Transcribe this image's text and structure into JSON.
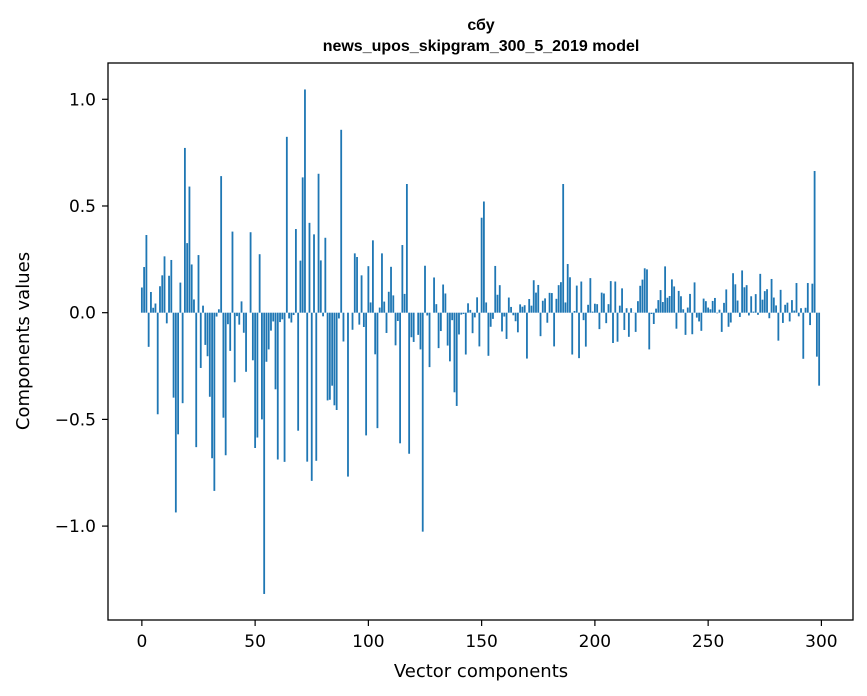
{
  "chart_data": {
    "type": "bar",
    "title_line1": "сбу",
    "title_line2": "news_upos_skipgram_300_5_2019 model",
    "xlabel": "Vector components",
    "ylabel": "Components values",
    "xlim": [
      -14.95,
      313.95
    ],
    "ylim": [
      -1.44,
      1.17
    ],
    "xticks": [
      0,
      50,
      100,
      150,
      200,
      250,
      300
    ],
    "xtick_labels": [
      "0",
      "50",
      "100",
      "150",
      "200",
      "250",
      "300"
    ],
    "yticks": [
      1.0,
      0.5,
      0.0,
      -0.5,
      -1.0
    ],
    "ytick_labels": [
      "1.0",
      "0.5",
      "0.0",
      "−0.5",
      "−1.0"
    ],
    "bar_color": "#1f77b4",
    "series": [
      {
        "name": "сбу",
        "values": [
          0.118,
          0.214,
          0.364,
          -0.16,
          0.097,
          0.023,
          0.043,
          -0.476,
          0.124,
          0.175,
          0.264,
          -0.05,
          0.173,
          0.247,
          -0.398,
          -0.936,
          -0.57,
          0.141,
          -0.424,
          0.772,
          0.326,
          0.591,
          0.226,
          0.062,
          -0.63,
          0.27,
          -0.259,
          0.033,
          -0.151,
          -0.204,
          -0.394,
          -0.682,
          -0.835,
          -0.018,
          0.016,
          0.64,
          -0.492,
          -0.668,
          -0.054,
          -0.179,
          0.38,
          -0.326,
          -0.016,
          -0.056,
          0.053,
          -0.094,
          -0.277,
          0.0,
          0.377,
          -0.223,
          -0.634,
          -0.585,
          0.274,
          -0.5,
          -1.318,
          -0.23,
          -0.172,
          -0.084,
          -0.041,
          -0.359,
          -0.688,
          -0.044,
          -0.031,
          -0.699,
          0.824,
          -0.027,
          -0.046,
          -0.011,
          0.392,
          -0.553,
          0.244,
          0.634,
          1.046,
          -0.698,
          0.421,
          -0.788,
          0.367,
          -0.694,
          0.651,
          0.245,
          -0.017,
          0.351,
          -0.411,
          -0.408,
          -0.342,
          -0.434,
          -0.456,
          -0.027,
          0.857,
          -0.135,
          0.0,
          -0.768,
          0.0,
          -0.08,
          0.278,
          0.261,
          -0.056,
          0.175,
          -0.067,
          -0.575,
          0.218,
          0.048,
          0.339,
          -0.195,
          -0.541,
          0.024,
          0.278,
          0.052,
          -0.095,
          0.098,
          0.215,
          0.081,
          -0.153,
          -0.039,
          -0.612,
          0.317,
          0.088,
          0.603,
          -0.661,
          -0.115,
          -0.137,
          0.0,
          -0.104,
          -0.172,
          -1.026,
          0.22,
          -0.013,
          -0.255,
          0.0,
          0.165,
          0.04,
          -0.166,
          -0.086,
          0.132,
          0.09,
          -0.154,
          -0.228,
          -0.035,
          -0.373,
          -0.437,
          -0.102,
          -0.009,
          -0.006,
          -0.196,
          0.044,
          0.013,
          -0.096,
          -0.022,
          0.072,
          -0.158,
          0.445,
          0.521,
          0.048,
          -0.202,
          -0.066,
          -0.029,
          0.219,
          0.084,
          0.129,
          -0.088,
          -0.018,
          -0.123,
          0.071,
          0.027,
          -0.012,
          -0.04,
          -0.092,
          0.039,
          0.028,
          0.035,
          -0.215,
          0.064,
          0.033,
          0.152,
          0.094,
          0.13,
          -0.11,
          0.056,
          0.067,
          -0.047,
          0.093,
          0.092,
          -0.158,
          0.065,
          0.129,
          0.143,
          0.603,
          0.048,
          0.228,
          0.166,
          -0.196,
          0.008,
          0.127,
          -0.213,
          0.146,
          -0.035,
          -0.159,
          0.037,
          0.162,
          0.005,
          0.042,
          0.04,
          -0.077,
          0.094,
          0.09,
          -0.049,
          0.04,
          0.148,
          -0.142,
          0.146,
          -0.136,
          0.033,
          0.114,
          -0.081,
          0.021,
          -0.113,
          0.021,
          0.001,
          -0.09,
          0.054,
          0.126,
          0.155,
          0.208,
          0.203,
          -0.172,
          -0.006,
          -0.053,
          0.019,
          0.059,
          0.106,
          0.05,
          0.217,
          0.07,
          0.078,
          0.156,
          0.123,
          -0.075,
          0.102,
          0.077,
          0.016,
          -0.104,
          0.024,
          0.088,
          -0.101,
          0.142,
          -0.023,
          -0.041,
          -0.085,
          0.066,
          0.054,
          0.024,
          0.016,
          0.055,
          0.069,
          -0.003,
          0.014,
          -0.09,
          0.046,
          0.109,
          -0.066,
          -0.046,
          0.185,
          0.133,
          0.057,
          -0.02,
          0.198,
          0.119,
          0.129,
          -0.013,
          0.077,
          0.005,
          0.087,
          -0.01,
          0.182,
          0.061,
          0.101,
          0.11,
          -0.026,
          0.158,
          0.071,
          0.034,
          -0.131,
          0.107,
          -0.048,
          0.037,
          0.047,
          -0.041,
          0.059,
          0.01,
          0.139,
          -0.017,
          0.021,
          -0.216,
          0.023,
          0.139,
          -0.058,
          0.136,
          0.664,
          -0.206,
          -0.342
        ]
      }
    ]
  }
}
